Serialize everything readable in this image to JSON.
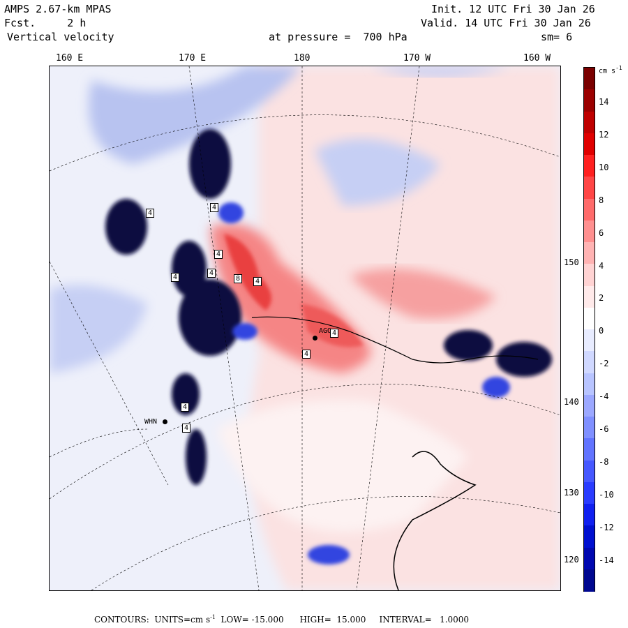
{
  "header": {
    "model": "AMPS 2.67-km MPAS",
    "fcst": "Fcst.     2 h",
    "field": "Vertical velocity",
    "init": "Init. 12 UTC Fri 30 Jan 26",
    "valid": "Valid. 14 UTC Fri 30 Jan 26",
    "level": "at pressure =  700 hPa",
    "smooth": "sm= 6"
  },
  "lon_labels": [
    "160 E",
    "170 E",
    "180",
    "170 W",
    "160 W"
  ],
  "lat_labels": [
    "150 W",
    "140 W",
    "130 W",
    "120 W"
  ],
  "stations": [
    {
      "name": "WHN"
    },
    {
      "name": "AGO"
    }
  ],
  "contour_labels": [
    "4",
    "4",
    "4",
    "4",
    "4",
    "4",
    "4",
    "8",
    "4",
    "4",
    "4"
  ],
  "colorbar": {
    "units": "cm s",
    "units_exp": "-1",
    "ticks": [
      "14",
      "12",
      "10",
      "8",
      "6",
      "4",
      "2",
      "0",
      "-2",
      "-4",
      "-6",
      "-8",
      "-10",
      "-12",
      "-14"
    ],
    "colors": [
      "#7a0000",
      "#9b0000",
      "#bf0000",
      "#e00000",
      "#ff2020",
      "#ff4646",
      "#ff6b6b",
      "#ff9090",
      "#ffb3b3",
      "#ffd3d3",
      "#ffeaea",
      "#ffffff",
      "#e8ecff",
      "#d0d8ff",
      "#b8c4ff",
      "#9ca8ff",
      "#8090ff",
      "#6274ff",
      "#4658ff",
      "#2a3cff",
      "#1020f0",
      "#0010d0",
      "#0008b0",
      "#000890"
    ]
  },
  "footer": {
    "contours": "CONTOURS:  UNITS=cm s",
    "exp": "-1",
    "rest": "  LOW= -15.000      HIGH=  15.000     INTERVAL=   1.0000"
  }
}
